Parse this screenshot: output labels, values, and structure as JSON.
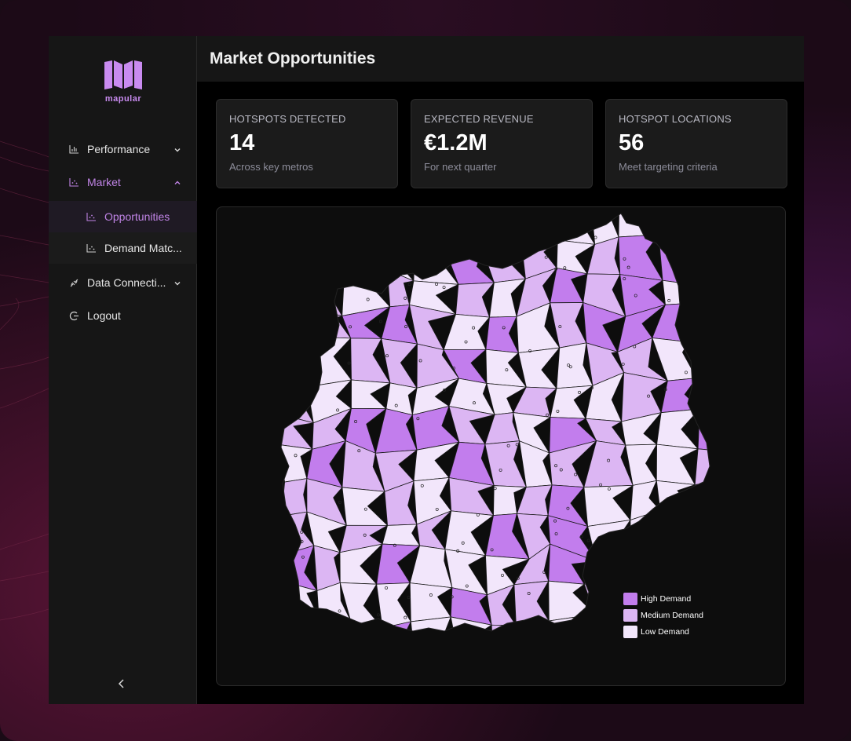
{
  "app": {
    "logo_text": "mapular",
    "brand_color": "#c084e6"
  },
  "sidebar": {
    "items": [
      {
        "label": "Performance",
        "icon": "bar-chart-icon",
        "chevron": "chevron-down-icon"
      },
      {
        "label": "Market",
        "icon": "scatter-chart-icon",
        "chevron": "chevron-up-icon",
        "active": true,
        "children": [
          {
            "label": "Opportunities",
            "icon": "scatter-chart-icon",
            "selected": true
          },
          {
            "label": "Demand Matc...",
            "icon": "scatter-chart-icon"
          }
        ]
      },
      {
        "label": "Data Connecti...",
        "icon": "plug-icon",
        "chevron": "chevron-down-icon"
      },
      {
        "label": "Logout",
        "icon": "logout-icon"
      }
    ],
    "collapse_icon": "chevron-left-icon"
  },
  "header": {
    "title": "Market Opportunities"
  },
  "stats": [
    {
      "label": "HOTSPOTS DETECTED",
      "value": "14",
      "sub": "Across key metros"
    },
    {
      "label": "EXPECTED REVENUE",
      "value": "€1.2M",
      "sub": "For next quarter"
    },
    {
      "label": "HOTSPOT LOCATIONS",
      "value": "56",
      "sub": "Meet targeting criteria"
    }
  ],
  "map": {
    "legend": [
      {
        "label": "High Demand",
        "color": "#c27ded"
      },
      {
        "label": "Medium Demand",
        "color": "#dcb6f3"
      },
      {
        "label": "Low Demand",
        "color": "#f2e6fb"
      }
    ]
  }
}
